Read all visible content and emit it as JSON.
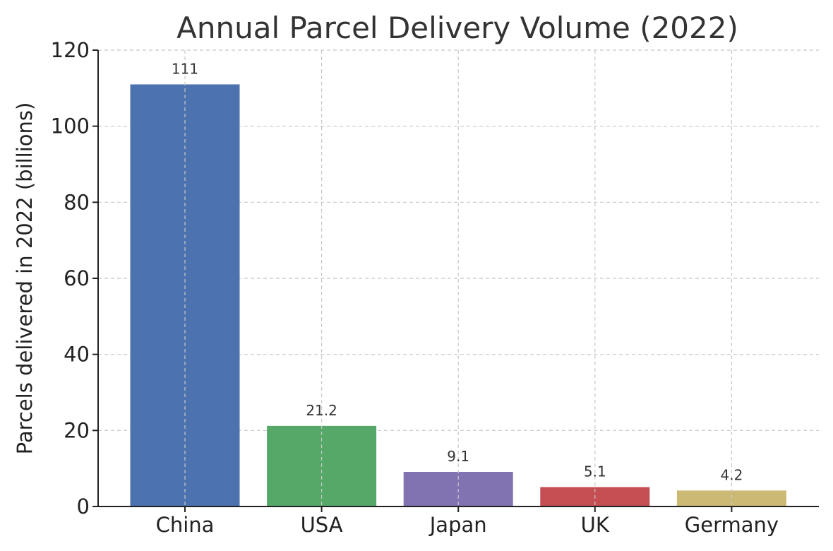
{
  "chart_data": {
    "type": "bar",
    "title": "Annual Parcel Delivery Volume (2022)",
    "xlabel": "",
    "ylabel": "Parcels delivered in 2022 (billions)",
    "categories": [
      "China",
      "USA",
      "Japan",
      "UK",
      "Germany"
    ],
    "values": [
      111,
      21.2,
      9.1,
      5.1,
      4.2
    ],
    "value_labels": [
      "111",
      "21.2",
      "9.1",
      "5.1",
      "4.2"
    ],
    "colors": [
      "#4c72b0",
      "#55a868",
      "#8172b2",
      "#c44e52",
      "#ccb974"
    ],
    "ylim": [
      0,
      120
    ],
    "yticks": [
      0,
      20,
      40,
      60,
      80,
      100,
      120
    ],
    "ytick_labels": [
      "0",
      "20",
      "40",
      "60",
      "80",
      "100",
      "120"
    ],
    "grid": true
  }
}
